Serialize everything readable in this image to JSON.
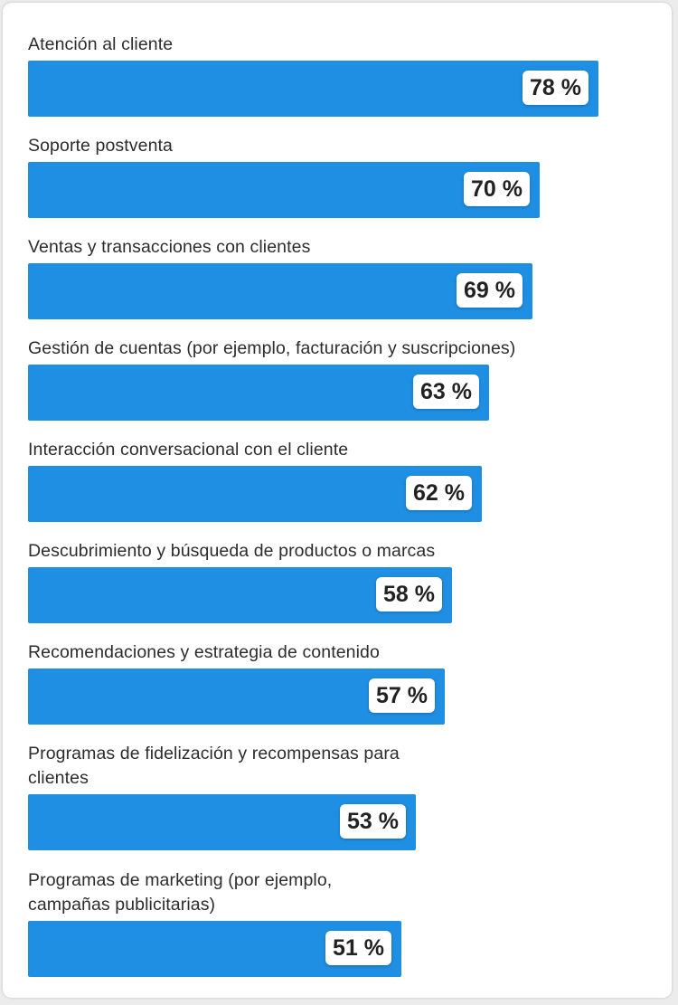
{
  "chart_data": {
    "type": "bar",
    "orientation": "horizontal",
    "categories": [
      "Atención al cliente",
      "Soporte postventa",
      "Ventas y transacciones con clientes",
      "Gestión de cuentas (por ejemplo, facturación y suscripciones)",
      "Interacción conversacional con el cliente",
      "Descubrimiento y búsqueda de productos o marcas",
      "Recomendaciones y estrategia de contenido",
      "Programas de fidelización y recompensas para clientes",
      "Programas de marketing (por ejemplo, campañas publicitarias)"
    ],
    "values": [
      78,
      70,
      69,
      63,
      62,
      58,
      57,
      53,
      51
    ],
    "value_labels": [
      "78 %",
      "70 %",
      "69 %",
      "63 %",
      "62 %",
      "58 %",
      "57 %",
      "53 %",
      "51 %"
    ],
    "unit": "%",
    "xlim": [
      0,
      100
    ],
    "grid": false,
    "legend": "none",
    "bar_color": "#1f8fe3"
  }
}
